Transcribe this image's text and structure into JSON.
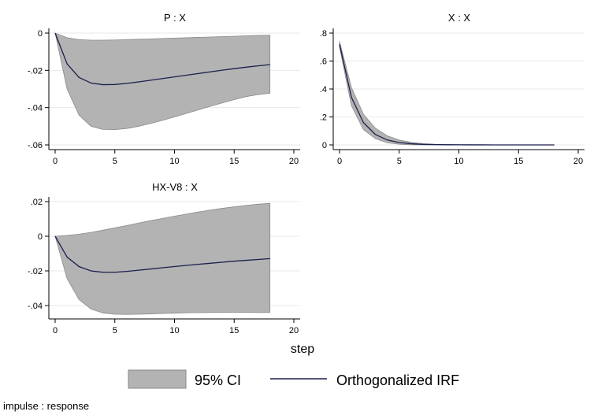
{
  "colors": {
    "ci_fill": "#b3b3b3",
    "ci_stroke": "#8a8a8a",
    "irf_line": "#1a1f4d",
    "grid": "#eaeaea",
    "axis": "#000000"
  },
  "xlabel": "step",
  "legend": {
    "ci_label": "95% CI",
    "irf_label": "Orthogonalized IRF"
  },
  "note": "impulse : response",
  "chart_data": [
    {
      "type": "area",
      "title": "P : X",
      "x": [
        0,
        1,
        2,
        3,
        4,
        5,
        6,
        7,
        8,
        9,
        10,
        11,
        12,
        13,
        14,
        15,
        16,
        17,
        18
      ],
      "xlim": [
        0,
        20
      ],
      "xticks": [
        0,
        5,
        10,
        15,
        20
      ],
      "ylim": [
        -0.06,
        0
      ],
      "yticks": [
        0,
        -0.02,
        -0.04,
        -0.06
      ],
      "ytick_labels": [
        "0",
        "-.02",
        "-.04",
        "-.06"
      ],
      "series": [
        {
          "name": "Orthogonalized IRF",
          "values": [
            0,
            -0.0165,
            -0.0238,
            -0.0268,
            -0.0277,
            -0.0276,
            -0.027,
            -0.0262,
            -0.0253,
            -0.0244,
            -0.0235,
            -0.0226,
            -0.0217,
            -0.0208,
            -0.0199,
            -0.0191,
            -0.0183,
            -0.0176,
            -0.0169
          ]
        },
        {
          "name": "95% CI lower",
          "values": [
            0,
            -0.03,
            -0.044,
            -0.05,
            -0.0517,
            -0.0518,
            -0.0512,
            -0.05,
            -0.0485,
            -0.0468,
            -0.045,
            -0.0431,
            -0.0412,
            -0.0393,
            -0.0375,
            -0.0357,
            -0.0341,
            -0.033,
            -0.0323
          ]
        },
        {
          "name": "95% CI upper",
          "values": [
            0,
            -0.0025,
            -0.0035,
            -0.0038,
            -0.0038,
            -0.0037,
            -0.0035,
            -0.0033,
            -0.0031,
            -0.0029,
            -0.0027,
            -0.0025,
            -0.0023,
            -0.0021,
            -0.0019,
            -0.0017,
            -0.0015,
            -0.0013,
            -0.0012
          ]
        }
      ]
    },
    {
      "type": "area",
      "title": "X : X",
      "x": [
        0,
        1,
        2,
        3,
        4,
        5,
        6,
        7,
        8,
        9,
        10,
        11,
        12,
        13,
        14,
        15,
        16,
        17,
        18
      ],
      "xlim": [
        0,
        20
      ],
      "xticks": [
        0,
        5,
        10,
        15,
        20
      ],
      "ylim": [
        0,
        0.8
      ],
      "yticks": [
        0,
        0.2,
        0.4,
        0.6,
        0.8
      ],
      "ytick_labels": [
        "0",
        ".2",
        ".4",
        ".6",
        ".8"
      ],
      "series": [
        {
          "name": "Orthogonalized IRF",
          "values": [
            0.72,
            0.34,
            0.16,
            0.075,
            0.035,
            0.017,
            0.008,
            0.004,
            0.002,
            0.001,
            0.0005,
            0.0003,
            0.0002,
            0.0001,
            0,
            0,
            0,
            0,
            0
          ]
        },
        {
          "name": "95% CI lower",
          "values": [
            0.7,
            0.28,
            0.11,
            0.045,
            0.015,
            0.005,
            0.001,
            0,
            0,
            0,
            0,
            0,
            0,
            0,
            0,
            0,
            0,
            0,
            0
          ]
        },
        {
          "name": "95% CI upper",
          "values": [
            0.74,
            0.41,
            0.22,
            0.12,
            0.065,
            0.035,
            0.018,
            0.009,
            0.005,
            0.003,
            0.002,
            0.001,
            0.0005,
            0.0003,
            0.0002,
            0.0001,
            0,
            0,
            0
          ]
        }
      ]
    },
    {
      "type": "area",
      "title": "HX-V8 : X",
      "x": [
        0,
        1,
        2,
        3,
        4,
        5,
        6,
        7,
        8,
        9,
        10,
        11,
        12,
        13,
        14,
        15,
        16,
        17,
        18
      ],
      "xlim": [
        0,
        20
      ],
      "xticks": [
        0,
        5,
        10,
        15,
        20
      ],
      "ylim": [
        -0.045,
        0.02
      ],
      "yticks": [
        0.02,
        0,
        -0.02,
        -0.04
      ],
      "ytick_labels": [
        ".02",
        "0",
        "-.02",
        "-.04"
      ],
      "series": [
        {
          "name": "Orthogonalized IRF",
          "values": [
            0,
            -0.012,
            -0.0175,
            -0.02,
            -0.0208,
            -0.0208,
            -0.0203,
            -0.0196,
            -0.0189,
            -0.0182,
            -0.0175,
            -0.0168,
            -0.0162,
            -0.0156,
            -0.015,
            -0.0144,
            -0.0139,
            -0.0134,
            -0.0129
          ]
        },
        {
          "name": "95% CI lower",
          "values": [
            0,
            -0.0245,
            -0.0365,
            -0.042,
            -0.0443,
            -0.045,
            -0.0451,
            -0.045,
            -0.0448,
            -0.0446,
            -0.0444,
            -0.0442,
            -0.0441,
            -0.044,
            -0.0439,
            -0.0439,
            -0.0439,
            -0.044,
            -0.044
          ]
        },
        {
          "name": "95% CI upper",
          "values": [
            0,
            0.0005,
            0.0012,
            0.0022,
            0.0035,
            0.0048,
            0.0062,
            0.0076,
            0.009,
            0.0103,
            0.0116,
            0.0128,
            0.014,
            0.0151,
            0.0161,
            0.017,
            0.0178,
            0.0185,
            0.019
          ]
        }
      ]
    }
  ]
}
